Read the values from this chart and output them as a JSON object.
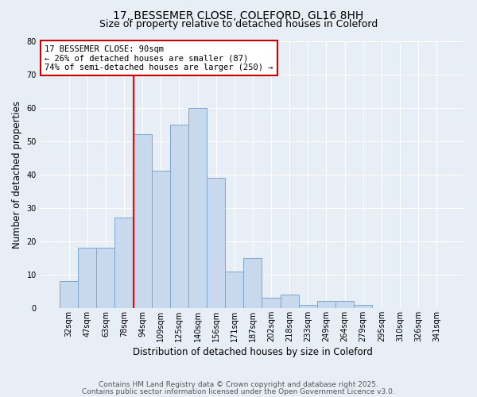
{
  "title1": "17, BESSEMER CLOSE, COLEFORD, GL16 8HH",
  "title2": "Size of property relative to detached houses in Coleford",
  "xlabel": "Distribution of detached houses by size in Coleford",
  "ylabel": "Number of detached properties",
  "categories": [
    "32sqm",
    "47sqm",
    "63sqm",
    "78sqm",
    "94sqm",
    "109sqm",
    "125sqm",
    "140sqm",
    "156sqm",
    "171sqm",
    "187sqm",
    "202sqm",
    "218sqm",
    "233sqm",
    "249sqm",
    "264sqm",
    "279sqm",
    "295sqm",
    "310sqm",
    "326sqm",
    "341sqm"
  ],
  "values": [
    8,
    18,
    18,
    27,
    52,
    41,
    55,
    60,
    39,
    11,
    15,
    3,
    4,
    1,
    2,
    2,
    1,
    0,
    0,
    0,
    0
  ],
  "bar_color": "#c9d9ed",
  "bar_edge_color": "#7aa8cc",
  "red_line_index": 4,
  "annotation_title": "17 BESSEMER CLOSE: 90sqm",
  "annotation_line1": "← 26% of detached houses are smaller (87)",
  "annotation_line2": "74% of semi-detached houses are larger (250) →",
  "annotation_box_color": "#ffffff",
  "annotation_box_edge": "#cc0000",
  "ylim_max": 80,
  "yticks": [
    0,
    10,
    20,
    30,
    40,
    50,
    60,
    70,
    80
  ],
  "footnote1": "Contains HM Land Registry data © Crown copyright and database right 2025.",
  "footnote2": "Contains public sector information licensed under the Open Government Licence v3.0.",
  "background_color": "#e8eef5",
  "plot_background": "#e8eef5",
  "grid_color": "#ffffff",
  "title_fontsize": 10,
  "subtitle_fontsize": 9,
  "axis_label_fontsize": 8.5,
  "tick_fontsize": 7,
  "footnote_fontsize": 6.5,
  "annotation_fontsize": 7.5
}
